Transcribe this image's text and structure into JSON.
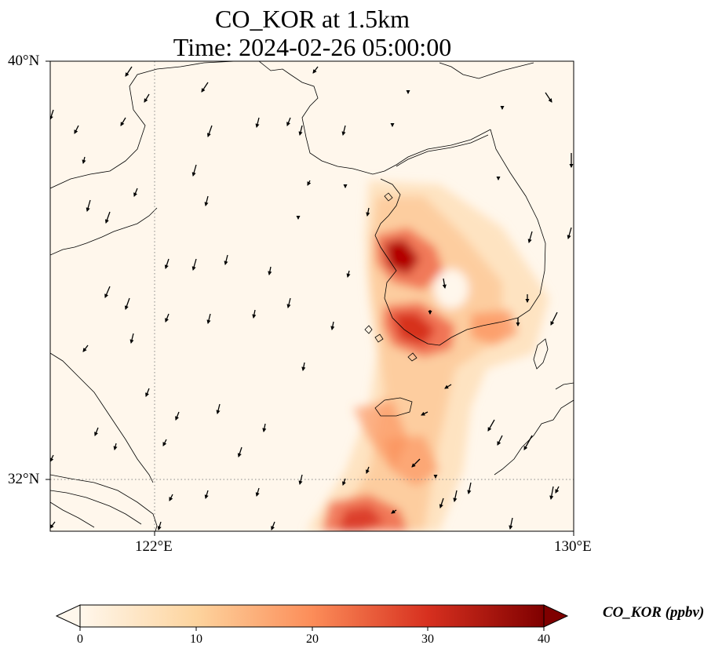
{
  "title": {
    "line1": "CO_KOR at 1.5km",
    "line2": "Time: 2024-02-26 05:00:00"
  },
  "axes": {
    "lat_labels": [
      "40°N",
      "32°N"
    ],
    "lon_labels": [
      "122°E",
      "130°E"
    ],
    "lon_range": [
      120,
      130
    ],
    "lat_range": [
      31,
      40
    ]
  },
  "colorbar": {
    "label": "CO_KOR (ppbv)",
    "ticks": [
      "0",
      "10",
      "20",
      "30",
      "40"
    ],
    "range": [
      0,
      40
    ],
    "colormap": "OrRd",
    "colors": [
      "#fff7ec",
      "#fdd49e",
      "#fc8d59",
      "#d7301f",
      "#7f0000"
    ]
  },
  "colors": {
    "background_low": "#fff7ec",
    "coastline": "#000000",
    "gridline": "#888888"
  }
}
